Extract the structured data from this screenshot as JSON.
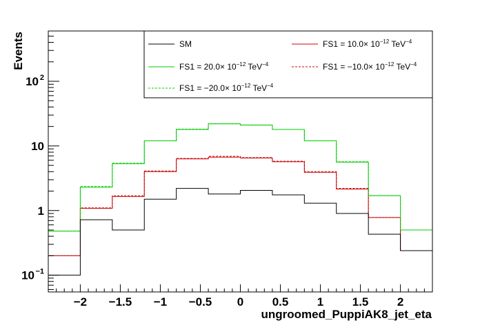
{
  "chart_data": {
    "type": "histogram-step",
    "xlabel": "ungroomed_PuppiAK8_jet_eta",
    "ylabel": "Events",
    "yscale": "log",
    "xlim": [
      -2.4,
      2.4
    ],
    "ylim": [
      0.055,
      600
    ],
    "bin_edges": [
      -2.4,
      -2.0,
      -1.6,
      -1.2,
      -0.8,
      -0.4,
      0.0,
      0.4,
      0.8,
      1.2,
      1.6,
      2.0,
      2.4
    ],
    "x_ticks": [
      {
        "v": -2,
        "label": "−2"
      },
      {
        "v": -1.5,
        "label": "−1.5"
      },
      {
        "v": -1,
        "label": "−1"
      },
      {
        "v": -0.5,
        "label": "−0.5"
      },
      {
        "v": 0,
        "label": "0"
      },
      {
        "v": 0.5,
        "label": "0.5"
      },
      {
        "v": 1,
        "label": "1"
      },
      {
        "v": 1.5,
        "label": "1.5"
      },
      {
        "v": 2,
        "label": "2"
      }
    ],
    "y_ticks": [
      {
        "v": 0.1,
        "base": "10",
        "exp": "−1"
      },
      {
        "v": 1,
        "base": "1",
        "exp": ""
      },
      {
        "v": 10,
        "base": "10",
        "exp": ""
      },
      {
        "v": 100,
        "base": "10",
        "exp": "2"
      }
    ],
    "series": [
      {
        "name": "SM",
        "color": "#000000",
        "dashed": false,
        "values": [
          0.1,
          0.72,
          0.5,
          1.5,
          2.2,
          1.8,
          2.05,
          1.75,
          1.3,
          0.9,
          0.43,
          0.24
        ]
      },
      {
        "name": "FS1 = 10.0× 10",
        "sup1": "−12",
        "tail": " TeV",
        "sup2": "−4",
        "color": "#cc0000",
        "dashed": false,
        "values": [
          0.2,
          1.08,
          1.65,
          4.0,
          6.3,
          6.7,
          6.5,
          5.7,
          3.9,
          2.15,
          0.78,
          0.24
        ]
      },
      {
        "name": "FS1 = 20.0× 10",
        "sup1": "−12",
        "tail": " TeV",
        "sup2": "−4",
        "color": "#00cc00",
        "dashed": false,
        "values": [
          0.48,
          2.3,
          5.3,
          12.0,
          18.0,
          22.0,
          21.0,
          18.0,
          12.0,
          5.6,
          1.7,
          0.5
        ]
      },
      {
        "name": "FS1 = −10.0× 10",
        "sup1": "−12",
        "tail": " TeV",
        "sup2": "−4",
        "color": "#cc0000",
        "dashed": true,
        "values": [
          0.2,
          1.1,
          1.7,
          4.1,
          6.4,
          6.9,
          6.6,
          5.8,
          4.0,
          2.2,
          0.78,
          0.24
        ]
      },
      {
        "name": "FS1 = −20.0× 10",
        "sup1": "−12",
        "tail": " TeV",
        "sup2": "−4",
        "color": "#00cc00",
        "dashed": true,
        "values": [
          0.48,
          2.35,
          5.4,
          12.0,
          18.2,
          22.0,
          21.0,
          18.0,
          12.0,
          5.7,
          1.7,
          0.5
        ]
      }
    ],
    "legend_placement": "top-right",
    "grid": false
  }
}
